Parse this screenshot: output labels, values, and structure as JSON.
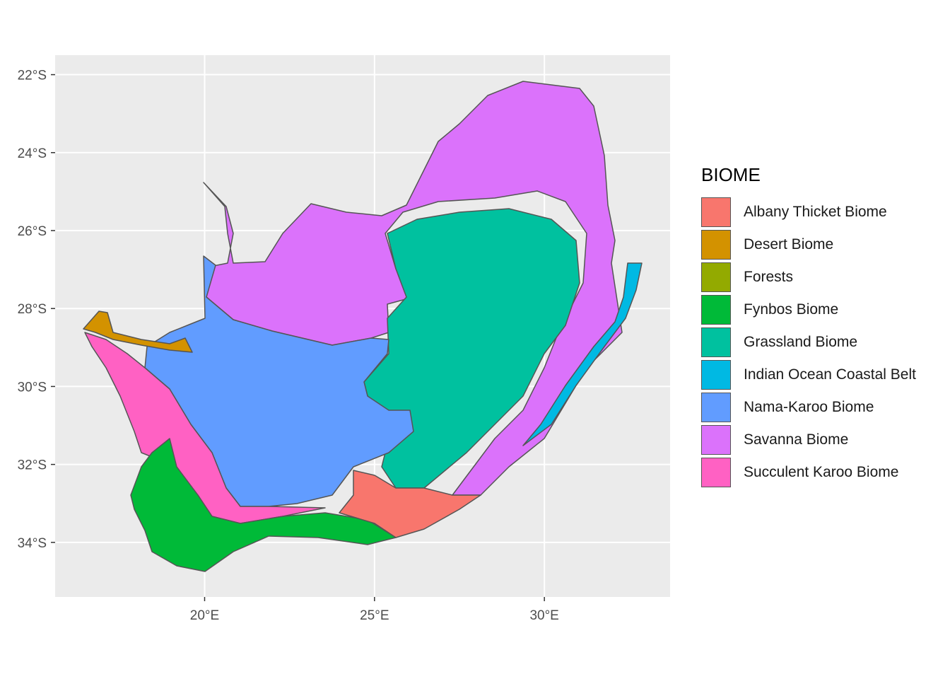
{
  "map": {
    "y_axis": {
      "ticks": [
        {
          "value": -22,
          "label": "22°S"
        },
        {
          "value": -24,
          "label": "24°S"
        },
        {
          "value": -26,
          "label": "26°S"
        },
        {
          "value": -28,
          "label": "28°S"
        },
        {
          "value": -30,
          "label": "30°S"
        },
        {
          "value": -32,
          "label": "32°S"
        },
        {
          "value": -34,
          "label": "34°S"
        }
      ],
      "range": [
        -35.4,
        -21.5
      ]
    },
    "x_axis": {
      "ticks": [
        {
          "value": 20,
          "label": "20°E"
        },
        {
          "value": 25,
          "label": "25°E"
        },
        {
          "value": 30,
          "label": "30°E"
        }
      ],
      "range": [
        15.6,
        33.7
      ]
    },
    "grid": true,
    "panel_background": "#ebebeb",
    "border_color": "#555555"
  },
  "legend": {
    "title": "BIOME",
    "items": [
      {
        "label": "Albany Thicket Biome",
        "color": "#F8766D"
      },
      {
        "label": "Desert Biome",
        "color": "#D39200"
      },
      {
        "label": "Forests",
        "color": "#93AA00"
      },
      {
        "label": "Fynbos Biome",
        "color": "#00BA38"
      },
      {
        "label": "Grassland Biome",
        "color": "#00C19F"
      },
      {
        "label": "Indian Ocean Coastal Belt",
        "color": "#00B9E3"
      },
      {
        "label": "Nama-Karoo Biome",
        "color": "#619CFF"
      },
      {
        "label": "Savanna Biome",
        "color": "#DB72FB"
      },
      {
        "label": "Succulent Karoo Biome",
        "color": "#FF61C3"
      }
    ]
  }
}
